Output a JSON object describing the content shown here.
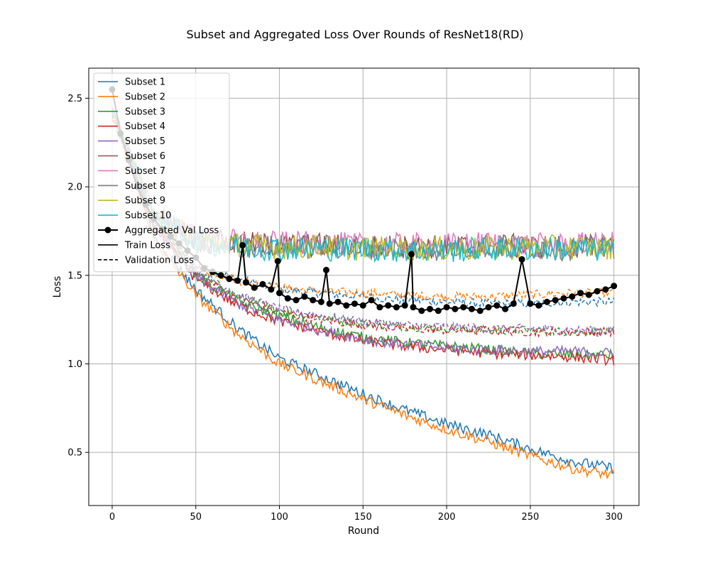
{
  "chart_data": {
    "type": "line",
    "title": "Subset and Aggregated Loss Over Rounds of ResNet18(RD)",
    "xlabel": "Round",
    "ylabel": "Loss",
    "xlim": [
      -14,
      315
    ],
    "ylim": [
      0.2,
      2.67
    ],
    "xticks": [
      0,
      50,
      100,
      150,
      200,
      250,
      300
    ],
    "yticks": [
      0.5,
      1.0,
      1.5,
      2.0,
      2.5
    ],
    "xtick_labels": [
      "0",
      "50",
      "100",
      "150",
      "200",
      "250",
      "300"
    ],
    "ytick_labels": [
      "0.5",
      "1.0",
      "1.5",
      "2.0",
      "2.5"
    ],
    "grid": true,
    "legend_position": "upper-left",
    "legend": {
      "entries": [
        {
          "label": "Subset 1",
          "color": "#1f77b4",
          "style": "solid"
        },
        {
          "label": "Subset 2",
          "color": "#ff7f0e",
          "style": "solid"
        },
        {
          "label": "Subset 3",
          "color": "#2ca02c",
          "style": "solid"
        },
        {
          "label": "Subset 4",
          "color": "#d62728",
          "style": "solid"
        },
        {
          "label": "Subset 5",
          "color": "#9467bd",
          "style": "solid"
        },
        {
          "label": "Subset 6",
          "color": "#8c564b",
          "style": "solid"
        },
        {
          "label": "Subset 7",
          "color": "#e377c2",
          "style": "solid"
        },
        {
          "label": "Subset 8",
          "color": "#7f7f7f",
          "style": "solid"
        },
        {
          "label": "Subset 9",
          "color": "#bcbd22",
          "style": "solid"
        },
        {
          "label": "Subset 10",
          "color": "#17becf",
          "style": "solid"
        },
        {
          "label": "Aggregated Val Loss",
          "color": "#000000",
          "style": "marker"
        },
        {
          "label": "Train Loss",
          "color": "#000000",
          "style": "solid"
        },
        {
          "label": "Validation Loss",
          "color": "#000000",
          "style": "dashed"
        }
      ]
    },
    "series": [
      {
        "name": "Subset 1",
        "color": "#1f77b4",
        "kind": "train",
        "x": [
          0,
          25,
          50,
          75,
          100,
          125,
          150,
          175,
          200,
          225,
          250,
          275,
          300
        ],
        "values": [
          2.45,
          1.72,
          1.42,
          1.2,
          1.03,
          0.93,
          0.83,
          0.74,
          0.66,
          0.6,
          0.52,
          0.45,
          0.41
        ]
      },
      {
        "name": "Subset 1",
        "color": "#1f77b4",
        "kind": "val",
        "x": [
          0,
          25,
          50,
          75,
          100,
          125,
          150,
          175,
          200,
          225,
          250,
          275,
          300
        ],
        "values": [
          2.4,
          1.8,
          1.55,
          1.48,
          1.42,
          1.4,
          1.38,
          1.36,
          1.35,
          1.34,
          1.34,
          1.35,
          1.35
        ]
      },
      {
        "name": "Subset 2",
        "color": "#ff7f0e",
        "kind": "train",
        "x": [
          0,
          25,
          50,
          75,
          100,
          125,
          150,
          175,
          200,
          225,
          250,
          275,
          300
        ],
        "values": [
          2.43,
          1.7,
          1.39,
          1.17,
          1.0,
          0.9,
          0.8,
          0.71,
          0.63,
          0.56,
          0.48,
          0.41,
          0.37
        ]
      },
      {
        "name": "Subset 2",
        "color": "#ff7f0e",
        "kind": "val",
        "x": [
          0,
          25,
          50,
          75,
          100,
          125,
          150,
          175,
          200,
          225,
          250,
          275,
          300
        ],
        "values": [
          2.38,
          1.78,
          1.55,
          1.47,
          1.43,
          1.41,
          1.4,
          1.39,
          1.38,
          1.38,
          1.39,
          1.4,
          1.4
        ]
      },
      {
        "name": "Subset 3",
        "color": "#2ca02c",
        "kind": "train",
        "x": [
          0,
          25,
          50,
          75,
          100,
          125,
          150,
          175,
          200,
          225,
          250,
          275,
          300
        ],
        "values": [
          2.42,
          1.78,
          1.5,
          1.35,
          1.27,
          1.2,
          1.15,
          1.12,
          1.1,
          1.08,
          1.06,
          1.05,
          1.05
        ]
      },
      {
        "name": "Subset 3",
        "color": "#2ca02c",
        "kind": "val",
        "x": [
          0,
          25,
          50,
          75,
          100,
          125,
          150,
          175,
          200,
          225,
          250,
          275,
          300
        ],
        "values": [
          2.41,
          1.8,
          1.52,
          1.38,
          1.3,
          1.26,
          1.23,
          1.21,
          1.2,
          1.19,
          1.19,
          1.18,
          1.18
        ]
      },
      {
        "name": "Subset 4",
        "color": "#d62728",
        "kind": "train",
        "x": [
          0,
          25,
          50,
          75,
          100,
          125,
          150,
          175,
          200,
          225,
          250,
          275,
          300
        ],
        "values": [
          2.44,
          1.76,
          1.48,
          1.33,
          1.24,
          1.18,
          1.13,
          1.1,
          1.08,
          1.06,
          1.05,
          1.04,
          1.02
        ]
      },
      {
        "name": "Subset 4",
        "color": "#d62728",
        "kind": "val",
        "x": [
          0,
          25,
          50,
          75,
          100,
          125,
          150,
          175,
          200,
          225,
          250,
          275,
          300
        ],
        "values": [
          2.4,
          1.79,
          1.51,
          1.37,
          1.29,
          1.25,
          1.22,
          1.2,
          1.19,
          1.19,
          1.18,
          1.18,
          1.18
        ]
      },
      {
        "name": "Subset 5",
        "color": "#9467bd",
        "kind": "train",
        "x": [
          0,
          25,
          50,
          75,
          100,
          125,
          150,
          175,
          200,
          225,
          250,
          275,
          300
        ],
        "values": [
          2.43,
          1.77,
          1.49,
          1.34,
          1.25,
          1.19,
          1.14,
          1.11,
          1.09,
          1.08,
          1.07,
          1.07,
          1.06
        ]
      },
      {
        "name": "Subset 5",
        "color": "#9467bd",
        "kind": "val",
        "x": [
          0,
          25,
          50,
          75,
          100,
          125,
          150,
          175,
          200,
          225,
          250,
          275,
          300
        ],
        "values": [
          2.42,
          1.8,
          1.53,
          1.39,
          1.31,
          1.27,
          1.24,
          1.22,
          1.21,
          1.2,
          1.2,
          1.19,
          1.19
        ]
      },
      {
        "name": "Subset 6",
        "color": "#8c564b",
        "kind": "train",
        "x": [
          0,
          25,
          50,
          75,
          100,
          125,
          150,
          175,
          200,
          225,
          250,
          275,
          300
        ],
        "values": [
          2.44,
          1.85,
          1.7,
          1.68,
          1.67,
          1.67,
          1.66,
          1.66,
          1.66,
          1.67,
          1.66,
          1.66,
          1.67
        ]
      },
      {
        "name": "Subset 7",
        "color": "#e377c2",
        "kind": "train",
        "x": [
          0,
          25,
          50,
          75,
          100,
          125,
          150,
          175,
          200,
          225,
          250,
          275,
          300
        ],
        "values": [
          2.45,
          1.86,
          1.71,
          1.69,
          1.68,
          1.68,
          1.67,
          1.67,
          1.67,
          1.68,
          1.67,
          1.67,
          1.68
        ]
      },
      {
        "name": "Subset 8",
        "color": "#7f7f7f",
        "kind": "train",
        "x": [
          0,
          25,
          50,
          75,
          100,
          125,
          150,
          175,
          200,
          225,
          250,
          275,
          300
        ],
        "values": [
          2.43,
          1.84,
          1.69,
          1.67,
          1.66,
          1.66,
          1.66,
          1.65,
          1.65,
          1.66,
          1.66,
          1.65,
          1.66
        ]
      },
      {
        "name": "Subset 9",
        "color": "#bcbd22",
        "kind": "train",
        "x": [
          0,
          25,
          50,
          75,
          100,
          125,
          150,
          175,
          200,
          225,
          250,
          275,
          300
        ],
        "values": [
          2.44,
          1.85,
          1.7,
          1.67,
          1.66,
          1.66,
          1.65,
          1.65,
          1.65,
          1.65,
          1.66,
          1.66,
          1.65
        ]
      },
      {
        "name": "Subset 10",
        "color": "#17becf",
        "kind": "train",
        "x": [
          0,
          25,
          50,
          75,
          100,
          125,
          150,
          175,
          200,
          225,
          250,
          275,
          300
        ],
        "values": [
          2.44,
          1.84,
          1.69,
          1.66,
          1.65,
          1.65,
          1.65,
          1.64,
          1.64,
          1.65,
          1.65,
          1.65,
          1.64
        ]
      },
      {
        "name": "Aggregated Val Loss",
        "color": "#000000",
        "kind": "aggregated",
        "x": [
          0,
          5,
          10,
          15,
          20,
          25,
          30,
          35,
          40,
          45,
          50,
          55,
          60,
          65,
          70,
          75,
          78,
          80,
          85,
          90,
          95,
          99,
          100,
          105,
          110,
          115,
          120,
          125,
          128,
          130,
          135,
          140,
          145,
          150,
          155,
          160,
          165,
          170,
          175,
          179,
          180,
          185,
          190,
          195,
          200,
          205,
          210,
          215,
          220,
          225,
          230,
          235,
          240,
          245,
          250,
          255,
          260,
          265,
          270,
          275,
          280,
          285,
          290,
          295,
          300
        ],
        "values": [
          2.55,
          2.3,
          2.15,
          2.0,
          1.9,
          1.82,
          1.76,
          1.72,
          1.68,
          1.64,
          1.6,
          1.54,
          1.52,
          1.5,
          1.48,
          1.47,
          1.67,
          1.46,
          1.43,
          1.45,
          1.42,
          1.58,
          1.4,
          1.37,
          1.36,
          1.38,
          1.36,
          1.35,
          1.53,
          1.34,
          1.35,
          1.33,
          1.34,
          1.33,
          1.36,
          1.32,
          1.33,
          1.32,
          1.33,
          1.62,
          1.32,
          1.3,
          1.31,
          1.3,
          1.32,
          1.31,
          1.32,
          1.31,
          1.3,
          1.32,
          1.33,
          1.31,
          1.34,
          1.59,
          1.34,
          1.33,
          1.35,
          1.36,
          1.37,
          1.38,
          1.4,
          1.39,
          1.41,
          1.42,
          1.44
        ]
      }
    ]
  }
}
